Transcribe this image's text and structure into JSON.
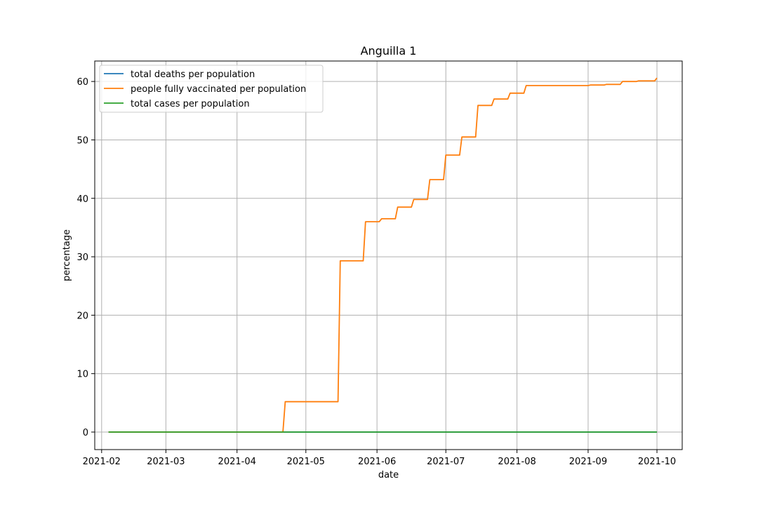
{
  "chart_data": {
    "type": "line",
    "title": "Anguilla 1",
    "xlabel": "date",
    "ylabel": "percentage",
    "xlim": [
      "2021-01-29",
      "2021-10-12"
    ],
    "ylim": [
      -3,
      63.5
    ],
    "x_ticks": [
      "2021-02-01",
      "2021-03-01",
      "2021-04-01",
      "2021-05-01",
      "2021-06-01",
      "2021-07-01",
      "2021-08-01",
      "2021-09-01",
      "2021-10-01"
    ],
    "x_tick_labels": [
      "2021-02",
      "2021-03",
      "2021-04",
      "2021-05",
      "2021-06",
      "2021-07",
      "2021-08",
      "2021-09",
      "2021-10"
    ],
    "y_ticks": [
      0,
      10,
      20,
      30,
      40,
      50,
      60
    ],
    "y_tick_labels": [
      "0",
      "10",
      "20",
      "30",
      "40",
      "50",
      "60"
    ],
    "grid": true,
    "legend_position": "top-left",
    "series": [
      {
        "name": "total deaths per population",
        "color": "#1f77b4",
        "points": [
          [
            "2021-02-04",
            0
          ],
          [
            "2021-10-01",
            0
          ]
        ]
      },
      {
        "name": "people fully vaccinated per population",
        "color": "#ff7f0e",
        "points": [
          [
            "2021-02-04",
            0
          ],
          [
            "2021-04-21",
            0
          ],
          [
            "2021-04-22",
            5.2
          ],
          [
            "2021-05-15",
            5.2
          ],
          [
            "2021-05-16",
            29.3
          ],
          [
            "2021-05-26",
            29.3
          ],
          [
            "2021-05-27",
            36.0
          ],
          [
            "2021-06-02",
            36.0
          ],
          [
            "2021-06-03",
            36.5
          ],
          [
            "2021-06-09",
            36.5
          ],
          [
            "2021-06-10",
            38.5
          ],
          [
            "2021-06-16",
            38.5
          ],
          [
            "2021-06-17",
            39.8
          ],
          [
            "2021-06-23",
            39.8
          ],
          [
            "2021-06-24",
            43.2
          ],
          [
            "2021-06-30",
            43.2
          ],
          [
            "2021-07-01",
            47.4
          ],
          [
            "2021-07-07",
            47.4
          ],
          [
            "2021-07-08",
            50.5
          ],
          [
            "2021-07-14",
            50.5
          ],
          [
            "2021-07-15",
            55.9
          ],
          [
            "2021-07-21",
            55.9
          ],
          [
            "2021-07-22",
            57.0
          ],
          [
            "2021-07-28",
            57.0
          ],
          [
            "2021-07-29",
            58.0
          ],
          [
            "2021-08-04",
            58.0
          ],
          [
            "2021-08-05",
            59.3
          ],
          [
            "2021-09-01",
            59.3
          ],
          [
            "2021-09-02",
            59.4
          ],
          [
            "2021-09-08",
            59.4
          ],
          [
            "2021-09-09",
            59.5
          ],
          [
            "2021-09-15",
            59.5
          ],
          [
            "2021-09-16",
            60.0
          ],
          [
            "2021-09-22",
            60.0
          ],
          [
            "2021-09-23",
            60.1
          ],
          [
            "2021-09-30",
            60.1
          ],
          [
            "2021-10-01",
            60.6
          ]
        ]
      },
      {
        "name": "total cases per population",
        "color": "#2ca02c",
        "points": [
          [
            "2021-02-04",
            0
          ],
          [
            "2021-10-01",
            0
          ]
        ]
      }
    ]
  }
}
